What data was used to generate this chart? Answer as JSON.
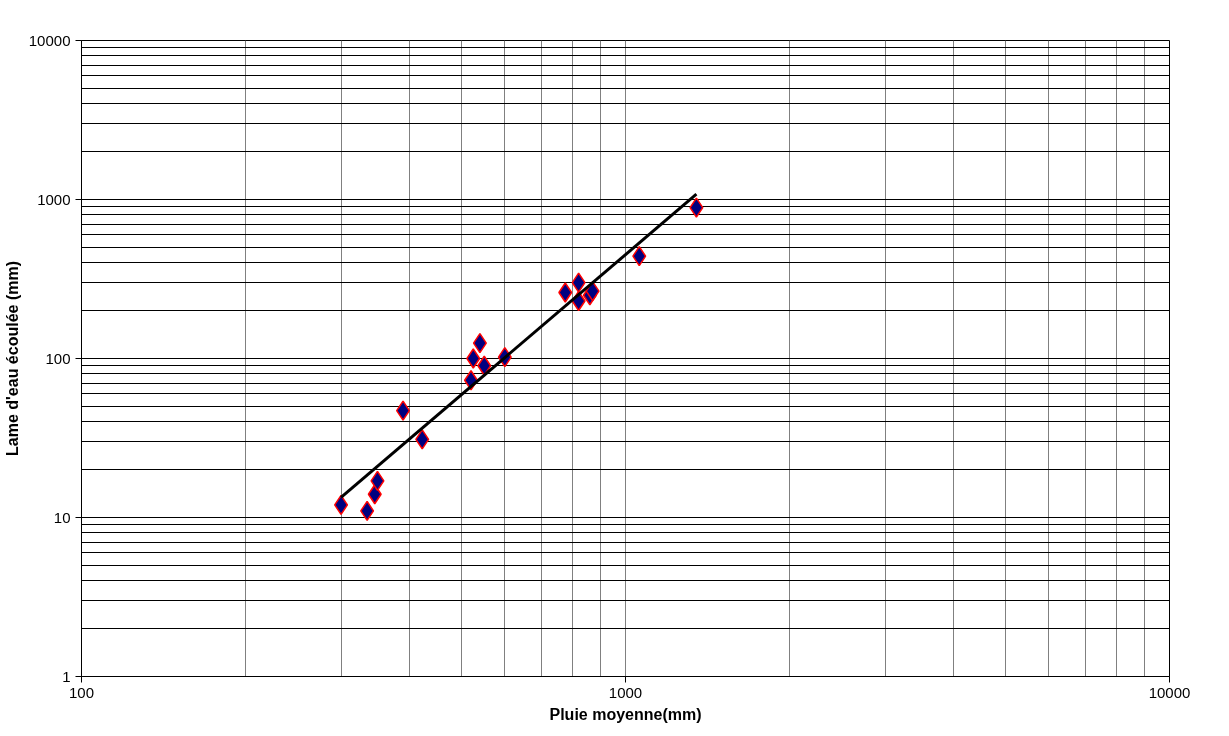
{
  "chart_data": {
    "type": "scatter",
    "xlabel": "Pluie moyenne(mm)",
    "ylabel": "Lame d'eau écoulée (mm)",
    "log": "xy",
    "grid": true,
    "xlim": [
      100,
      10000
    ],
    "ylim": [
      1,
      10000
    ],
    "xticks": [
      100,
      1000,
      10000
    ],
    "yticks": [
      1,
      10,
      100,
      1000,
      10000
    ],
    "series": [
      {
        "marker": "diamond",
        "color": "#000080",
        "x": [
          300,
          335,
          346,
          350,
          390,
          423,
          520,
          525,
          540,
          550,
          600,
          775,
          820,
          820,
          860,
          870,
          1060,
          1350
        ],
        "values": [
          12,
          11,
          14,
          17,
          47,
          31,
          73,
          100,
          125,
          90,
          102,
          260,
          300,
          230,
          250,
          265,
          440,
          890
        ]
      },
      {
        "type": "line",
        "color": "#000000",
        "x": [
          300,
          1350
        ],
        "values": [
          13.4,
          1080
        ]
      }
    ]
  }
}
